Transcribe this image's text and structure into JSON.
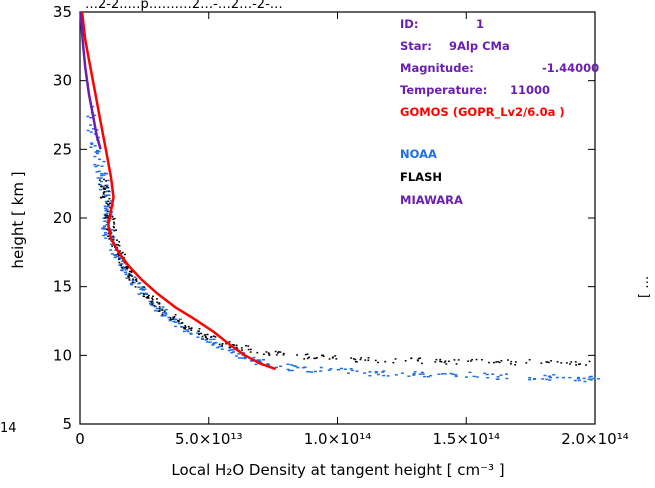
{
  "top_title_fragment": "…2-2..…p…….…2…-…2…-2-…",
  "left_cut_label": "14",
  "right_cut_label": "[ …",
  "info_box": [
    {
      "label": "ID:",
      "value": "1"
    },
    {
      "label": "Star:",
      "value": "9Alp CMa"
    },
    {
      "label": "Magnitude:",
      "value": "-1.44000"
    },
    {
      "label": "Temperature:",
      "value": "11000"
    }
  ],
  "legend": {
    "gomos": "GOMOS (GOPR_Lv2/6.0a )",
    "noaa": "NOAA",
    "flash": "FLASH",
    "miawara": "MIAWARA"
  },
  "colors": {
    "gomos": "#ff0000",
    "noaa": "#1e6ee6",
    "flash": "#000000",
    "miawara": "#6a1fb0",
    "info_text": "#6a1fb0"
  },
  "chart_data": {
    "type": "line",
    "title": "",
    "xlabel": "Local H₂O Density at tangent height [ cm⁻³ ]",
    "ylabel": "height [ km ]",
    "xlim": [
      0,
      200000000000000.0
    ],
    "ylim": [
      5,
      35
    ],
    "xticks": [
      {
        "value": 0,
        "label": "0"
      },
      {
        "value": 50000000000000.0,
        "label": "5.0×10¹³"
      },
      {
        "value": 100000000000000.0,
        "label": "1.0×10¹⁴"
      },
      {
        "value": 150000000000000.0,
        "label": "1.5×10¹⁴"
      },
      {
        "value": 200000000000000.0,
        "label": "2.0×10¹⁴"
      }
    ],
    "yticks": [
      5,
      10,
      15,
      20,
      25,
      30,
      35
    ],
    "series": [
      {
        "name": "GOMOS (GOPR_Lv2/6.0a )",
        "style": "line",
        "points": [
          [
            800000000000.0,
            35
          ],
          [
            2000000000000.0,
            33
          ],
          [
            4000000000000.0,
            31
          ],
          [
            6000000000000.0,
            29
          ],
          [
            8000000000000.0,
            27
          ],
          [
            10000000000000.0,
            25
          ],
          [
            12000000000000.0,
            23
          ],
          [
            13000000000000.0,
            21.5
          ],
          [
            12000000000000.0,
            20.5
          ],
          [
            11000000000000.0,
            19.5
          ],
          [
            12000000000000.0,
            18.5
          ],
          [
            15000000000000.0,
            17.5
          ],
          [
            19000000000000.0,
            16.5
          ],
          [
            24000000000000.0,
            15.5
          ],
          [
            30000000000000.0,
            14.5
          ],
          [
            37000000000000.0,
            13.5
          ],
          [
            44000000000000.0,
            12.7
          ],
          [
            52000000000000.0,
            11.7
          ],
          [
            58000000000000.0,
            10.8
          ],
          [
            64000000000000.0,
            10.0
          ],
          [
            70000000000000.0,
            9.4
          ],
          [
            76000000000000.0,
            9.0
          ]
        ]
      },
      {
        "name": "MIAWARA",
        "style": "line",
        "points": [
          [
            200000000000.0,
            35
          ],
          [
            1000000000000.0,
            33
          ],
          [
            2000000000000.0,
            31
          ],
          [
            3500000000000.0,
            29
          ],
          [
            5000000000000.0,
            27.5
          ],
          [
            6500000000000.0,
            26
          ],
          [
            8000000000000.0,
            25
          ]
        ]
      },
      {
        "name": "NOAA",
        "style": "scatter",
        "points": [
          [
            3000000000000.0,
            28
          ],
          [
            5000000000000.0,
            25.5
          ],
          [
            7000000000000.0,
            24
          ],
          [
            9000000000000.0,
            22.5
          ],
          [
            11000000000000.0,
            21
          ],
          [
            10000000000000.0,
            20
          ],
          [
            10000000000000.0,
            19
          ],
          [
            12000000000000.0,
            18
          ],
          [
            15000000000000.0,
            17
          ],
          [
            18000000000000.0,
            16
          ],
          [
            22000000000000.0,
            15
          ],
          [
            27000000000000.0,
            14
          ],
          [
            33000000000000.0,
            13
          ],
          [
            40000000000000.0,
            12
          ],
          [
            48000000000000.0,
            11.2
          ],
          [
            56000000000000.0,
            10.5
          ],
          [
            65000000000000.0,
            9.8
          ],
          [
            75000000000000.0,
            9.3
          ],
          [
            90000000000000.0,
            9.0
          ],
          [
            110000000000000.0,
            8.8
          ],
          [
            130000000000000.0,
            8.7
          ],
          [
            150000000000000.0,
            8.6
          ],
          [
            170000000000000.0,
            8.5
          ],
          [
            190000000000000.0,
            8.4
          ],
          [
            200000000000000.0,
            8.3
          ]
        ]
      },
      {
        "name": "FLASH",
        "style": "scatter",
        "points": [
          [
            8000000000000.0,
            23
          ],
          [
            9000000000000.0,
            22
          ],
          [
            10000000000000.0,
            21
          ],
          [
            11000000000000.0,
            20
          ],
          [
            12000000000000.0,
            19
          ],
          [
            14000000000000.0,
            18
          ],
          [
            16000000000000.0,
            17
          ],
          [
            19000000000000.0,
            16
          ],
          [
            23000000000000.0,
            15
          ],
          [
            28000000000000.0,
            14
          ],
          [
            34000000000000.0,
            13
          ],
          [
            40000000000000.0,
            12.2
          ],
          [
            48000000000000.0,
            11.5
          ],
          [
            58000000000000.0,
            10.8
          ],
          [
            70000000000000.0,
            10.3
          ],
          [
            85000000000000.0,
            10.0
          ],
          [
            100000000000000.0,
            9.8
          ],
          [
            120000000000000.0,
            9.7
          ],
          [
            140000000000000.0,
            9.6
          ],
          [
            160000000000000.0,
            9.6
          ],
          [
            180000000000000.0,
            9.5
          ],
          [
            200000000000000.0,
            9.4
          ]
        ]
      }
    ]
  }
}
